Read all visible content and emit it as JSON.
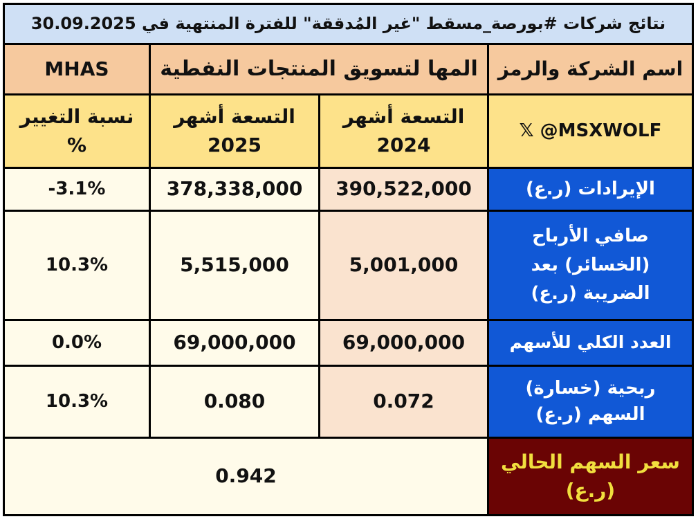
{
  "title": "نتائج شركات #بورصة_مسقط \"غير المُدققة\" للفترة المنتهية في 30.09.2025",
  "header": {
    "company_label": "اسم الشركة والرمز",
    "company_name": "المها لتسويق المنتجات النفطية",
    "ticker": "MHAS"
  },
  "columns": {
    "handle": "𝕏 @MSXWOLF",
    "nine_months_2024_line1": "التسعة أشهر",
    "nine_months_2024_line2": "2024",
    "nine_months_2025_line1": "التسعة أشهر",
    "nine_months_2025_line2": "2025",
    "change_line1": "نسبة التغيير",
    "change_line2": "%"
  },
  "rows": [
    {
      "label": "الإيرادات (ر.ع)",
      "v2024": "390,522,000",
      "v2025": "378,338,000",
      "change": "-3.1%"
    },
    {
      "label": "صافي الأرباح (الخسائر) بعد الضريبة (ر.ع)",
      "v2024": "5,001,000",
      "v2025": "5,515,000",
      "change": "10.3%"
    },
    {
      "label": "العدد الكلي للأسهم",
      "v2024": "69,000,000",
      "v2025": "69,000,000",
      "change": "0.0%"
    },
    {
      "label": "ربحية (خسارة) السهم (ر.ع)",
      "v2024": "0.072",
      "v2025": "0.080",
      "change": "10.3%"
    }
  ],
  "price": {
    "label": "سعر السهم الحالي (ر.ع)",
    "value": "0.942"
  },
  "colors": {
    "title_bg": "#cfe0f5",
    "header_bg": "#f6c99e",
    "subheader_bg": "#fde28a",
    "label_bg": "#1158d6",
    "price_label_bg": "#6a0404",
    "price_label_text": "#f1df3e"
  }
}
